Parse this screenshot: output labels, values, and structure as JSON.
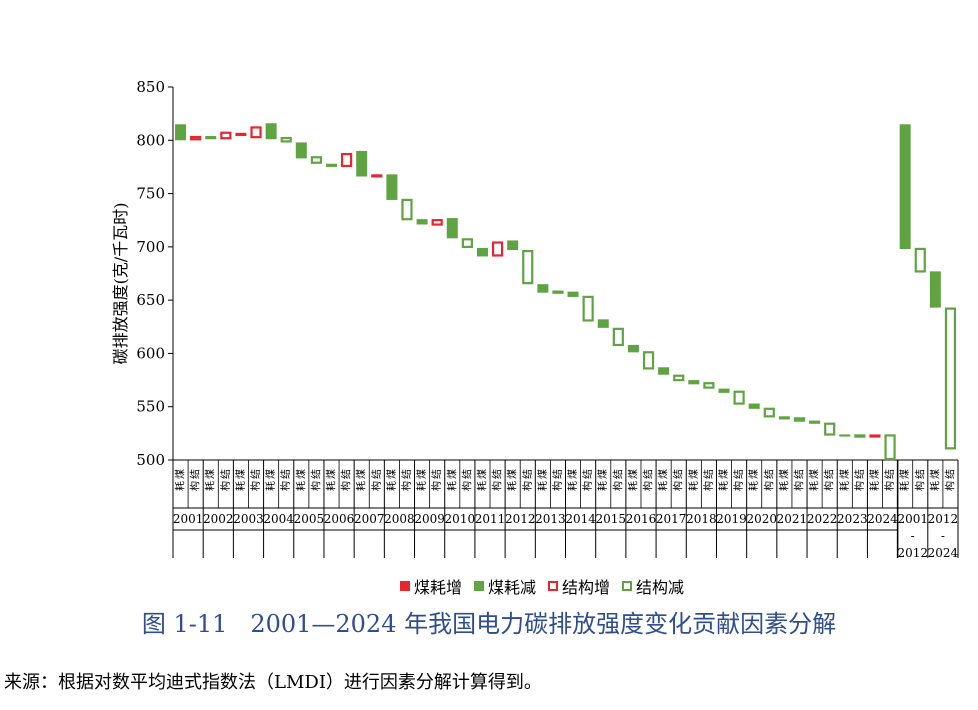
{
  "colors": {
    "coal_up": "#e8262f",
    "coal_down": "#5fa343",
    "struct_up": "#e8262f",
    "struct_down": "#5fa343",
    "caption": "#2f4d8f"
  },
  "legend": [
    {
      "key": "coal_up",
      "label": "煤耗增",
      "style": "filled",
      "color": "#e8262f"
    },
    {
      "key": "coal_down",
      "label": "煤耗减",
      "style": "filled",
      "color": "#5fa343"
    },
    {
      "key": "struct_up",
      "label": "结构增",
      "style": "hollow",
      "color": "#e8262f"
    },
    {
      "key": "struct_down",
      "label": "结构减",
      "style": "hollow",
      "color": "#5fa343"
    }
  ],
  "caption": {
    "figure_no": "图 1-11",
    "title": "2001—2024 年我国电力碳排放强度变化贡献因素分解"
  },
  "source_note": "来源：根据对数平均迪式指数法（LMDI）进行因素分解计算得到。",
  "chart_data": {
    "type": "waterfall",
    "ylabel": "碳排放强度(克/千瓦时)",
    "ylim": [
      500,
      850
    ],
    "yticks": [
      500,
      550,
      600,
      650,
      700,
      750,
      800,
      850
    ],
    "sub_labels": {
      "coal": "煤耗",
      "struct": "结构"
    },
    "groups": [
      {
        "label": "2001",
        "bars": [
          {
            "sub": "coal",
            "start": 815,
            "end": 800
          },
          {
            "sub": "struct",
            "start": 800,
            "end": 804
          }
        ]
      },
      {
        "label": "2002",
        "bars": [
          {
            "sub": "coal",
            "start": 804,
            "end": 801
          },
          {
            "sub": "struct",
            "start": 801,
            "end": 808
          }
        ]
      },
      {
        "label": "2003",
        "bars": [
          {
            "sub": "coal",
            "start": 804,
            "end": 807
          },
          {
            "sub": "struct",
            "start": 802,
            "end": 813
          }
        ]
      },
      {
        "label": "2004",
        "bars": [
          {
            "sub": "coal",
            "start": 816,
            "end": 801
          },
          {
            "sub": "struct",
            "start": 803,
            "end": 798
          }
        ]
      },
      {
        "label": "2005",
        "bars": [
          {
            "sub": "coal",
            "start": 798,
            "end": 783
          },
          {
            "sub": "struct",
            "start": 785,
            "end": 778
          }
        ]
      },
      {
        "label": "2006",
        "bars": [
          {
            "sub": "coal",
            "start": 778,
            "end": 775
          },
          {
            "sub": "struct",
            "start": 775,
            "end": 788
          }
        ]
      },
      {
        "label": "2007",
        "bars": [
          {
            "sub": "coal",
            "start": 790,
            "end": 766
          },
          {
            "sub": "struct",
            "start": 766,
            "end": 768
          }
        ]
      },
      {
        "label": "2008",
        "bars": [
          {
            "sub": "coal",
            "start": 768,
            "end": 744
          },
          {
            "sub": "struct",
            "start": 745,
            "end": 725
          }
        ]
      },
      {
        "label": "2009",
        "bars": [
          {
            "sub": "coal",
            "start": 726,
            "end": 721
          },
          {
            "sub": "struct",
            "start": 720,
            "end": 726
          }
        ]
      },
      {
        "label": "2010",
        "bars": [
          {
            "sub": "coal",
            "start": 727,
            "end": 708
          },
          {
            "sub": "struct",
            "start": 708,
            "end": 699
          }
        ]
      },
      {
        "label": "2011",
        "bars": [
          {
            "sub": "coal",
            "start": 699,
            "end": 691
          },
          {
            "sub": "struct",
            "start": 691,
            "end": 705
          }
        ]
      },
      {
        "label": "2012",
        "bars": [
          {
            "sub": "coal",
            "start": 706,
            "end": 697
          },
          {
            "sub": "struct",
            "start": 697,
            "end": 665
          }
        ]
      },
      {
        "label": "2013",
        "bars": [
          {
            "sub": "coal",
            "start": 665,
            "end": 657
          },
          {
            "sub": "struct",
            "start": 659,
            "end": 656
          }
        ]
      },
      {
        "label": "2014",
        "bars": [
          {
            "sub": "coal",
            "start": 658,
            "end": 653
          },
          {
            "sub": "struct",
            "start": 654,
            "end": 630
          }
        ]
      },
      {
        "label": "2015",
        "bars": [
          {
            "sub": "coal",
            "start": 632,
            "end": 624
          },
          {
            "sub": "struct",
            "start": 624,
            "end": 607
          }
        ]
      },
      {
        "label": "2016",
        "bars": [
          {
            "sub": "coal",
            "start": 608,
            "end": 601
          },
          {
            "sub": "struct",
            "start": 602,
            "end": 585
          }
        ]
      },
      {
        "label": "2017",
        "bars": [
          {
            "sub": "coal",
            "start": 587,
            "end": 580
          },
          {
            "sub": "struct",
            "start": 580,
            "end": 574
          }
        ]
      },
      {
        "label": "2018",
        "bars": [
          {
            "sub": "coal",
            "start": 575,
            "end": 571
          },
          {
            "sub": "struct",
            "start": 573,
            "end": 567
          }
        ]
      },
      {
        "label": "2019",
        "bars": [
          {
            "sub": "coal",
            "start": 567,
            "end": 563
          },
          {
            "sub": "struct",
            "start": 565,
            "end": 552
          }
        ]
      },
      {
        "label": "2020",
        "bars": [
          {
            "sub": "coal",
            "start": 553,
            "end": 548
          },
          {
            "sub": "struct",
            "start": 549,
            "end": 540
          }
        ]
      },
      {
        "label": "2021",
        "bars": [
          {
            "sub": "coal",
            "start": 541,
            "end": 538
          },
          {
            "sub": "struct",
            "start": 540,
            "end": 536
          }
        ]
      },
      {
        "label": "2022",
        "bars": [
          {
            "sub": "coal",
            "start": 537,
            "end": 534
          },
          {
            "sub": "struct",
            "start": 535,
            "end": 523
          }
        ]
      },
      {
        "label": "2023",
        "bars": [
          {
            "sub": "coal",
            "start": 524,
            "end": 522
          },
          {
            "sub": "struct",
            "start": 524,
            "end": 521
          }
        ]
      },
      {
        "label": "2024",
        "bars": [
          {
            "sub": "coal",
            "start": 521,
            "end": 524
          },
          {
            "sub": "struct",
            "start": 524,
            "end": 500
          }
        ]
      },
      {
        "label": "2001\n-\n2012",
        "bars": [
          {
            "sub": "coal",
            "start": 815,
            "end": 698
          },
          {
            "sub": "struct",
            "start": 699,
            "end": 676
          }
        ]
      },
      {
        "label": "2012\n-\n2024",
        "bars": [
          {
            "sub": "coal",
            "start": 677,
            "end": 643
          },
          {
            "sub": "struct",
            "start": 643,
            "end": 510
          }
        ]
      }
    ]
  }
}
